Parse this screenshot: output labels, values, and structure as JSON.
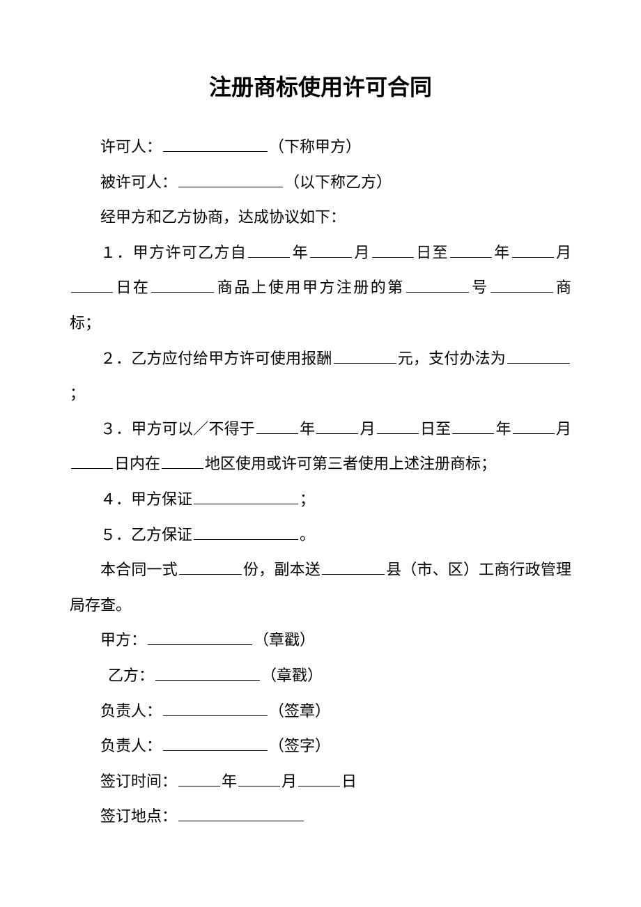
{
  "document": {
    "title": "注册商标使用许可合同",
    "background_color": "#ffffff",
    "text_color": "#000000",
    "title_fontsize": 32,
    "body_fontsize": 22,
    "line_height": 2.3,
    "text_indent_em": 2,
    "font_family": "SimSun"
  },
  "parties": {
    "licensor_label": "许可人：",
    "licensor_suffix": "（下称甲方）",
    "licensee_label": "被许可人：",
    "licensee_suffix": "（以下称乙方）"
  },
  "preamble": "经甲方和乙方协商，达成协议如下：",
  "clauses": {
    "c1_prefix": "１．甲方许可乙方自",
    "c1_year": "年",
    "c1_month": "月",
    "c1_day_to": "日至",
    "c1_year2": "年",
    "c1_month2": "月",
    "c1_day_on": "日在",
    "c1_goods": "商品上使用甲方注册的第",
    "c1_number": "号",
    "c1_trademark": "商标；",
    "c2_prefix": "２．乙方应付给甲方许可使用报酬",
    "c2_yuan": "元，支付办法为",
    "c2_end": "；",
    "c3_prefix": "３．甲方可以／不得于",
    "c3_year": "年",
    "c3_month": "月",
    "c3_day_to": "日至",
    "c3_year2": "年",
    "c3_month2": "月",
    "c3_day_in": "日内在",
    "c3_region": "地区使用或许可第三者使用上述注册商标；",
    "c4_prefix": "４．甲方保证",
    "c4_end": "；",
    "c5_prefix": "５．乙方保证",
    "c5_end": "。"
  },
  "copies": {
    "prefix": "本合同一式",
    "mid": "份，副本送",
    "suffix": "县（市、区）工商行政管理局存查。"
  },
  "signatures": {
    "party_a_label": "甲方：",
    "party_a_suffix": "（章戳）",
    "party_b_label": "乙方：",
    "party_b_suffix": "（章戳）",
    "responsible1_label": "负责人：",
    "responsible1_suffix": "（签章）",
    "responsible2_label": "负责人：",
    "responsible2_suffix": "（签字）",
    "sign_time_label": "签订时间：",
    "sign_time_year": "年",
    "sign_time_month": "月",
    "sign_time_day": "日",
    "sign_place_label": "签订地点："
  }
}
